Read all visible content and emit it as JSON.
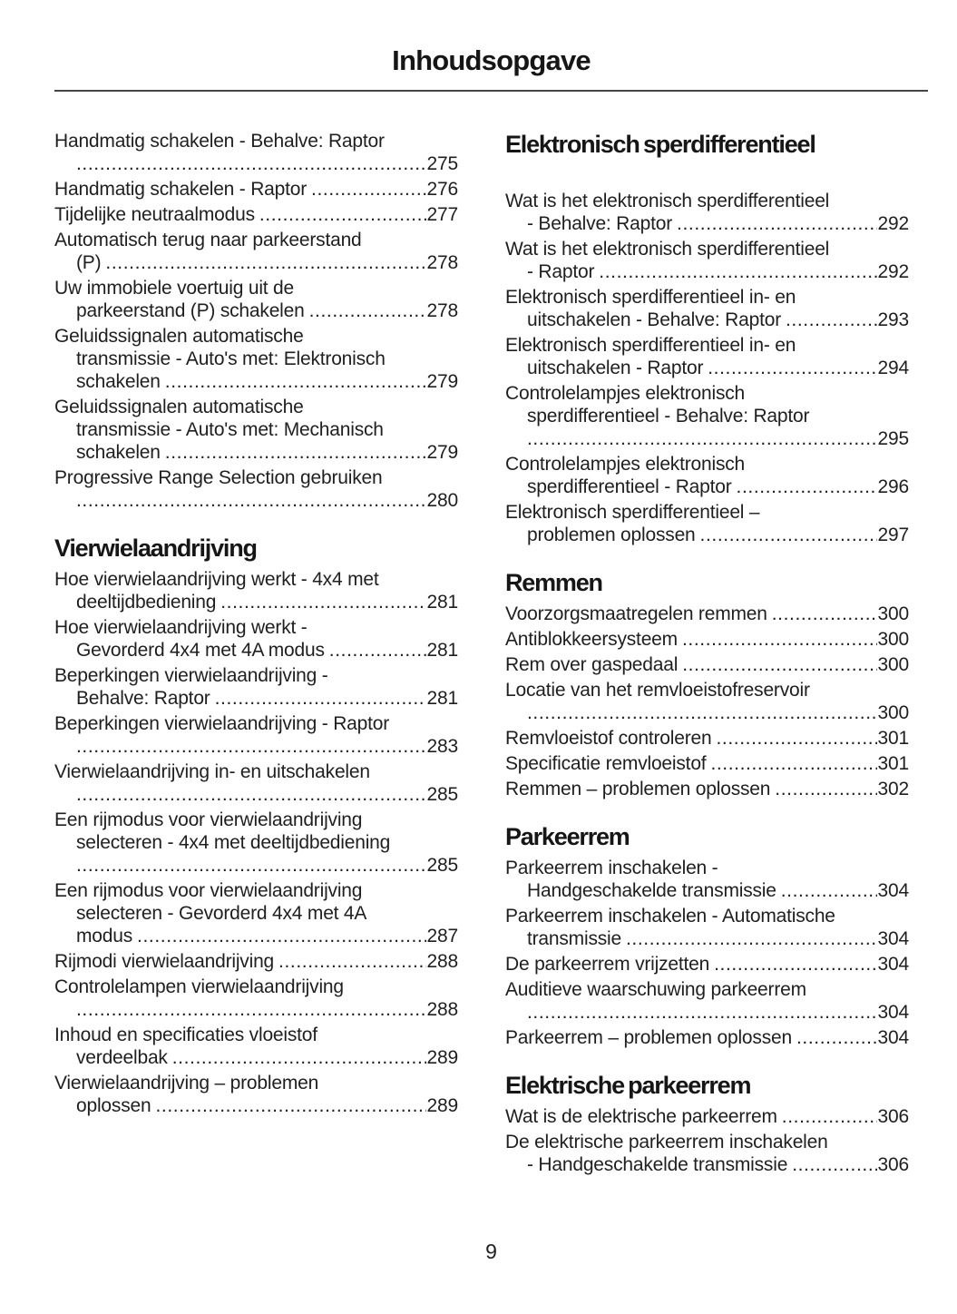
{
  "title": "Inhoudsopgave",
  "page_number": "9",
  "colors": {
    "text": "#1f1f1f",
    "divider": "#454545",
    "background": "#ffffff"
  },
  "columns": [
    {
      "sections": [
        {
          "header": null,
          "header_gap": false,
          "entries": [
            {
              "lines": [
                "Handmatig schakelen - Behalve: Raptor"
              ],
              "last": "",
              "page": "275"
            },
            {
              "lines": [],
              "last": "Handmatig schakelen - Raptor",
              "page": "276"
            },
            {
              "lines": [],
              "last": "Tijdelijke neutraalmodus",
              "page": "277"
            },
            {
              "lines": [
                "Automatisch terug naar parkeerstand"
              ],
              "last": "(P)",
              "page": "278"
            },
            {
              "lines": [
                "Uw immobiele voertuig uit de"
              ],
              "last": "parkeerstand (P) schakelen",
              "page": "278"
            },
            {
              "lines": [
                "Geluidssignalen automatische",
                "transmissie - Auto's met: Elektronisch"
              ],
              "last": "schakelen",
              "page": "279"
            },
            {
              "lines": [
                "Geluidssignalen automatische",
                "transmissie - Auto's met: Mechanisch"
              ],
              "last": "schakelen",
              "page": "279"
            },
            {
              "lines": [
                "Progressive Range Selection gebruiken"
              ],
              "last": "",
              "page": "280"
            }
          ]
        },
        {
          "header": "Vierwielaandrijving",
          "header_gap": false,
          "entries": [
            {
              "lines": [
                "Hoe vierwielaandrijving werkt - 4x4 met"
              ],
              "last": "deeltijdbediening",
              "page": "281"
            },
            {
              "lines": [
                "Hoe vierwielaandrijving werkt -"
              ],
              "last": "Gevorderd 4x4 met 4A modus",
              "page": "281"
            },
            {
              "lines": [
                "Beperkingen vierwielaandrijving -"
              ],
              "last": "Behalve: Raptor",
              "page": "281"
            },
            {
              "lines": [
                "Beperkingen vierwielaandrijving - Raptor"
              ],
              "last": "",
              "page": "283"
            },
            {
              "lines": [
                "Vierwielaandrijving in- en uitschakelen"
              ],
              "last": "",
              "page": "285"
            },
            {
              "lines": [
                "Een rijmodus voor vierwielaandrijving",
                "selecteren - 4x4 met deeltijdbediening"
              ],
              "last": "",
              "page": "285"
            },
            {
              "lines": [
                "Een rijmodus voor vierwielaandrijving",
                "selecteren - Gevorderd 4x4 met 4A"
              ],
              "last": "modus",
              "page": "287"
            },
            {
              "lines": [],
              "last": "Rijmodi vierwielaandrijving",
              "page": "288"
            },
            {
              "lines": [
                "Controlelampen vierwielaandrijving"
              ],
              "last": "",
              "page": "288"
            },
            {
              "lines": [
                "Inhoud en specificaties vloeistof"
              ],
              "last": "verdeelbak",
              "page": "289"
            },
            {
              "lines": [
                "Vierwielaandrijving – problemen"
              ],
              "last": "oplossen",
              "page": "289"
            }
          ]
        }
      ]
    },
    {
      "sections": [
        {
          "header": "Elektronisch sperdifferentieel",
          "header_gap": true,
          "entries": [
            {
              "lines": [
                "Wat is het elektronisch sperdifferentieel"
              ],
              "last": "- Behalve: Raptor",
              "page": "292"
            },
            {
              "lines": [
                "Wat is het elektronisch sperdifferentieel"
              ],
              "last": "- Raptor",
              "page": "292"
            },
            {
              "lines": [
                "Elektronisch sperdifferentieel in- en"
              ],
              "last": "uitschakelen - Behalve: Raptor",
              "page": "293"
            },
            {
              "lines": [
                "Elektronisch sperdifferentieel in- en"
              ],
              "last": "uitschakelen - Raptor",
              "page": "294"
            },
            {
              "lines": [
                "Controlelampjes elektronisch",
                "sperdifferentieel - Behalve: Raptor"
              ],
              "last": "",
              "page": "295"
            },
            {
              "lines": [
                "Controlelampjes elektronisch"
              ],
              "last": "sperdifferentieel - Raptor",
              "page": "296"
            },
            {
              "lines": [
                "Elektronisch sperdifferentieel –"
              ],
              "last": "problemen oplossen",
              "page": "297"
            }
          ]
        },
        {
          "header": "Remmen",
          "header_gap": false,
          "entries": [
            {
              "lines": [],
              "last": "Voorzorgsmaatregelen remmen",
              "page": "300"
            },
            {
              "lines": [],
              "last": "Antiblokkeersysteem",
              "page": "300"
            },
            {
              "lines": [],
              "last": "Rem over gaspedaal",
              "page": "300"
            },
            {
              "lines": [
                "Locatie van het remvloeistofreservoir"
              ],
              "last": "",
              "page": "300"
            },
            {
              "lines": [],
              "last": "Remvloeistof controleren",
              "page": "301"
            },
            {
              "lines": [],
              "last": "Specificatie remvloeistof",
              "page": "301"
            },
            {
              "lines": [],
              "last": "Remmen – problemen oplossen",
              "page": "302"
            }
          ]
        },
        {
          "header": "Parkeerrem",
          "header_gap": false,
          "entries": [
            {
              "lines": [
                "Parkeerrem inschakelen -"
              ],
              "last": "Handgeschakelde transmissie",
              "page": "304"
            },
            {
              "lines": [
                "Parkeerrem inschakelen - Automatische"
              ],
              "last": "transmissie",
              "page": "304"
            },
            {
              "lines": [],
              "last": "De parkeerrem vrijzetten",
              "page": "304"
            },
            {
              "lines": [
                "Auditieve waarschuwing parkeerrem"
              ],
              "last": "",
              "page": "304"
            },
            {
              "lines": [],
              "last": "Parkeerrem – problemen oplossen",
              "page": "304"
            }
          ]
        },
        {
          "header": "Elektrische parkeerrem",
          "header_gap": false,
          "entries": [
            {
              "lines": [],
              "last": "Wat is de elektrische parkeerrem",
              "page": "306"
            },
            {
              "lines": [
                "De elektrische parkeerrem inschakelen"
              ],
              "last": "- Handgeschakelde transmissie",
              "page": "306"
            }
          ]
        }
      ]
    }
  ]
}
